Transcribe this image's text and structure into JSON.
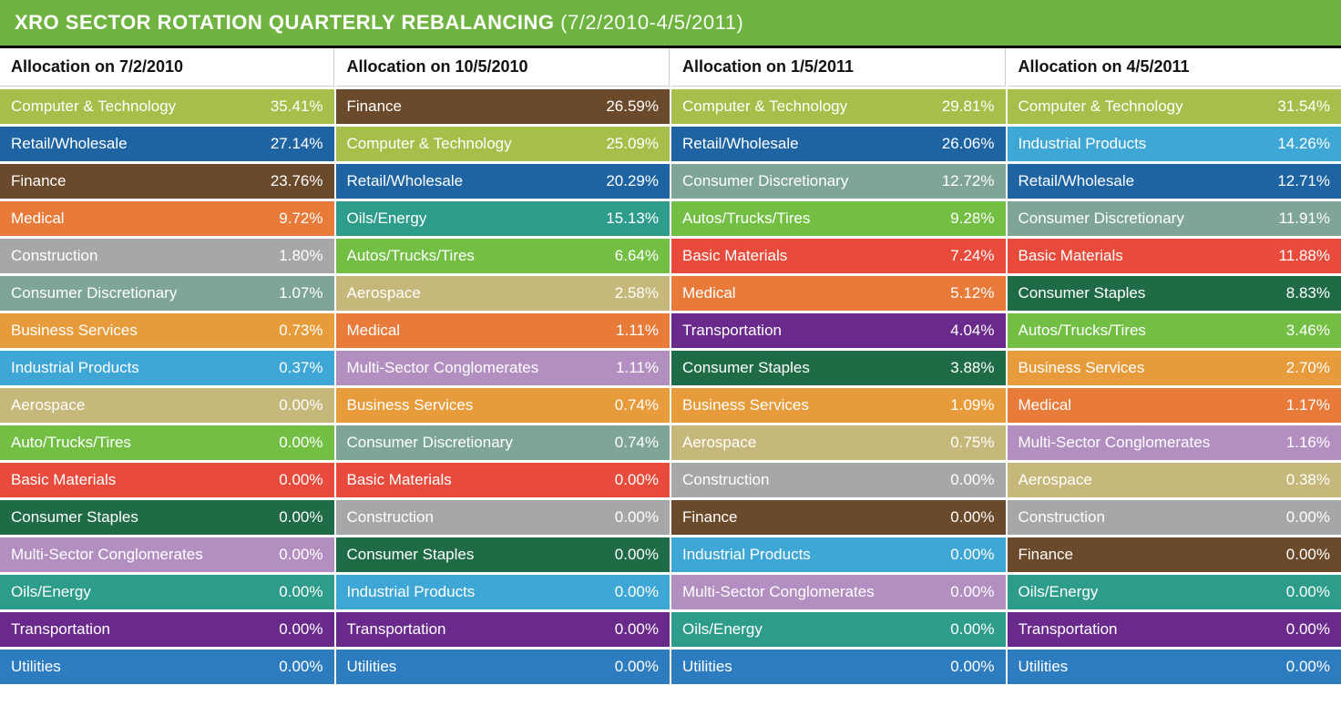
{
  "title": {
    "main": "XRO SECTOR ROTATION QUARTERLY REBALANCING",
    "range": "(7/2/2010-4/5/2011)",
    "bg": "#6fb341",
    "fontsize_main": 22
  },
  "sector_colors": {
    "Computer & Technology": "#a6bf4b",
    "Retail/Wholesale": "#1e64a3",
    "Finance": "#6b4a2b",
    "Medical": "#e87a3a",
    "Construction": "#a6a7a9",
    "Consumer Discretionary": "#7ea595",
    "Business Services": "#e79b3b",
    "Industrial Products": "#3ea7d6",
    "Aerospace": "#c6b77a",
    "Autos/Trucks/Tires": "#72bf44",
    "Auto/Trucks/Tires": "#72bf44",
    "Basic Materials": "#e84b3c",
    "Consumer Staples": "#1f6b45",
    "Multi-Sector Conglomerates": "#b28fc0",
    "Oils/Energy": "#2d9c8a",
    "Transportation": "#6a2a8c",
    "Utilities": "#2e7cc0"
  },
  "columns": [
    {
      "header": "Allocation on 7/2/2010",
      "rows": [
        {
          "label": "Computer & Technology",
          "value": "35.41%"
        },
        {
          "label": "Retail/Wholesale",
          "value": "27.14%"
        },
        {
          "label": "Finance",
          "value": "23.76%"
        },
        {
          "label": "Medical",
          "value": "9.72%"
        },
        {
          "label": "Construction",
          "value": "1.80%"
        },
        {
          "label": "Consumer Discretionary",
          "value": "1.07%"
        },
        {
          "label": "Business Services",
          "value": "0.73%"
        },
        {
          "label": "Industrial Products",
          "value": "0.37%"
        },
        {
          "label": "Aerospace",
          "value": "0.00%"
        },
        {
          "label": "Auto/Trucks/Tires",
          "value": "0.00%"
        },
        {
          "label": "Basic Materials",
          "value": "0.00%"
        },
        {
          "label": "Consumer Staples",
          "value": "0.00%"
        },
        {
          "label": "Multi-Sector Conglomerates",
          "value": "0.00%"
        },
        {
          "label": "Oils/Energy",
          "value": "0.00%"
        },
        {
          "label": "Transportation",
          "value": "0.00%"
        },
        {
          "label": "Utilities",
          "value": "0.00%"
        }
      ]
    },
    {
      "header": "Allocation on 10/5/2010",
      "rows": [
        {
          "label": "Finance",
          "value": "26.59%"
        },
        {
          "label": "Computer & Technology",
          "value": "25.09%"
        },
        {
          "label": "Retail/Wholesale",
          "value": "20.29%"
        },
        {
          "label": "Oils/Energy",
          "value": "15.13%"
        },
        {
          "label": "Autos/Trucks/Tires",
          "value": "6.64%"
        },
        {
          "label": "Aerospace",
          "value": "2.58%"
        },
        {
          "label": "Medical",
          "value": "1.11%"
        },
        {
          "label": "Multi-Sector Conglomerates",
          "value": "1.11%"
        },
        {
          "label": "Business Services",
          "value": "0.74%"
        },
        {
          "label": "Consumer Discretionary",
          "value": "0.74%"
        },
        {
          "label": "Basic Materials",
          "value": "0.00%"
        },
        {
          "label": "Construction",
          "value": "0.00%"
        },
        {
          "label": "Consumer Staples",
          "value": "0.00%"
        },
        {
          "label": "Industrial Products",
          "value": "0.00%"
        },
        {
          "label": "Transportation",
          "value": "0.00%"
        },
        {
          "label": "Utilities",
          "value": "0.00%"
        }
      ]
    },
    {
      "header": "Allocation on 1/5/2011",
      "rows": [
        {
          "label": "Computer & Technology",
          "value": "29.81%"
        },
        {
          "label": "Retail/Wholesale",
          "value": "26.06%"
        },
        {
          "label": "Consumer Discretionary",
          "value": "12.72%"
        },
        {
          "label": "Autos/Trucks/Tires",
          "value": "9.28%"
        },
        {
          "label": "Basic Materials",
          "value": "7.24%"
        },
        {
          "label": "Medical",
          "value": "5.12%"
        },
        {
          "label": "Transportation",
          "value": "4.04%"
        },
        {
          "label": "Consumer Staples",
          "value": "3.88%"
        },
        {
          "label": "Business Services",
          "value": "1.09%"
        },
        {
          "label": "Aerospace",
          "value": "0.75%"
        },
        {
          "label": "Construction",
          "value": "0.00%"
        },
        {
          "label": "Finance",
          "value": "0.00%"
        },
        {
          "label": "Industrial Products",
          "value": "0.00%"
        },
        {
          "label": "Multi-Sector Conglomerates",
          "value": "0.00%"
        },
        {
          "label": "Oils/Energy",
          "value": "0.00%"
        },
        {
          "label": "Utilities",
          "value": "0.00%"
        }
      ]
    },
    {
      "header": "Allocation on 4/5/2011",
      "rows": [
        {
          "label": "Computer & Technology",
          "value": "31.54%"
        },
        {
          "label": "Industrial Products",
          "value": "14.26%"
        },
        {
          "label": "Retail/Wholesale",
          "value": "12.71%"
        },
        {
          "label": "Consumer Discretionary",
          "value": "11.91%"
        },
        {
          "label": "Basic Materials",
          "value": "11.88%"
        },
        {
          "label": "Consumer Staples",
          "value": "8.83%"
        },
        {
          "label": "Autos/Trucks/Tires",
          "value": "3.46%"
        },
        {
          "label": "Business Services",
          "value": "2.70%"
        },
        {
          "label": "Medical",
          "value": "1.17%"
        },
        {
          "label": "Multi-Sector Conglomerates",
          "value": "1.16%"
        },
        {
          "label": "Aerospace",
          "value": "0.38%"
        },
        {
          "label": "Construction",
          "value": "0.00%"
        },
        {
          "label": "Finance",
          "value": "0.00%"
        },
        {
          "label": "Oils/Energy",
          "value": "0.00%"
        },
        {
          "label": "Transportation",
          "value": "0.00%"
        },
        {
          "label": "Utilities",
          "value": "0.00%"
        }
      ]
    }
  ],
  "layout": {
    "row_fontsize": 17,
    "header_fontsize": 18,
    "row_gap": 3,
    "col_gap": 2,
    "text_color": "#ffffff",
    "header_text_color": "#111111",
    "header_bg": "#ffffff",
    "page_bg": "#ffffff",
    "title_border_bottom": "#000000"
  }
}
